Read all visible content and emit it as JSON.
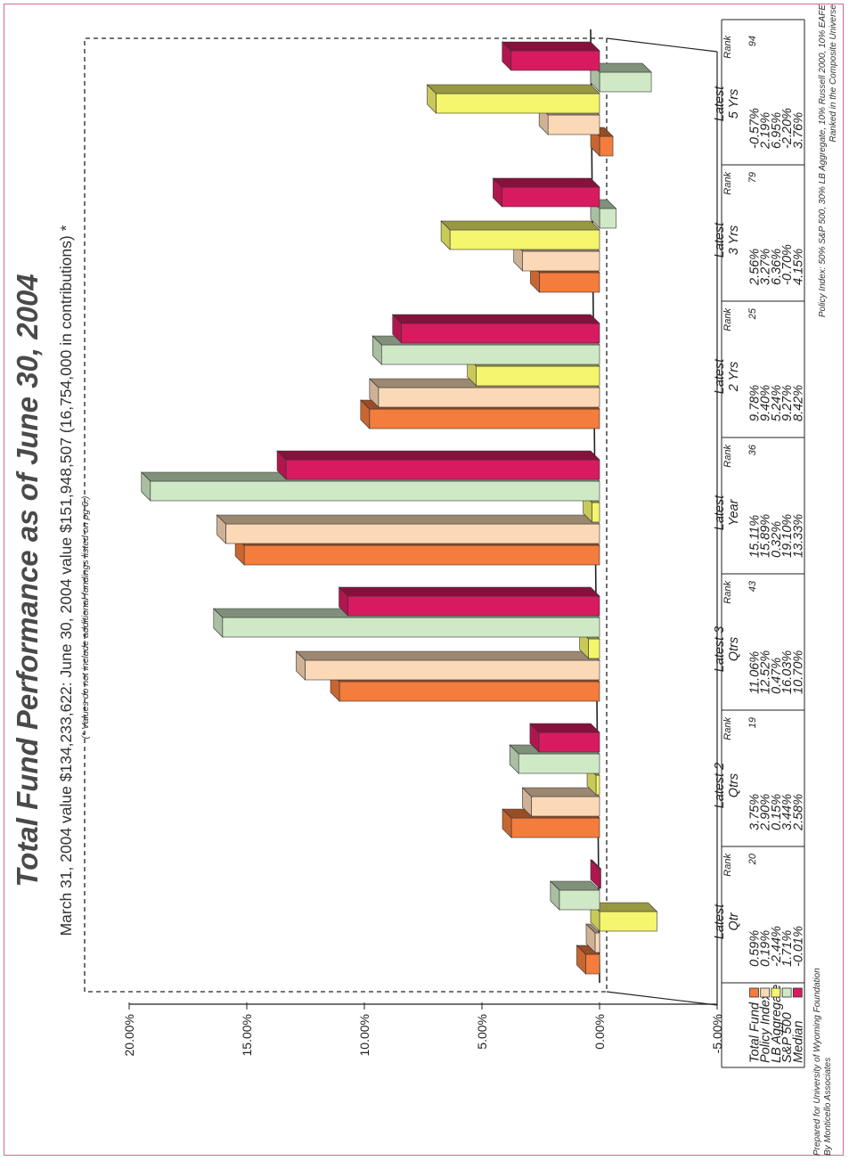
{
  "title": "Total Fund Performance as of June 30, 2004",
  "subtitle": "March 31, 2004 value $134,233,622:  June 30, 2004 value $151,948,507 (16,754,000 in contributions) *",
  "note": "(* Values do not include additional fundings listed on pg 6.)",
  "footer": {
    "prepared_line1": "Prepared for University of Wyoming Foundation",
    "prepared_line2": "By Monticello Associates",
    "policy_line1": "Policy Index:  50% S&P 500, 30% LB Aggregate, 10% Russell 2000, 10% EAFE",
    "policy_line2": "Ranked in the Composite Universe"
  },
  "table": {
    "rank_label": "Rank",
    "ranks": [
      "20",
      "19",
      "43",
      "36",
      "25",
      "79",
      "94"
    ]
  },
  "colors": {
    "Total Fund": "#f47c3c",
    "Policy Index": "#fcd9b6",
    "LB Aggregate": "#f5f56e",
    "S&P 500": "#cfe9c6",
    "Median": "#d81b60"
  },
  "chart_data": {
    "type": "bar",
    "categories": [
      "Latest Qtr",
      "Latest 2 Qtrs",
      "Latest 3 Qtrs",
      "Latest Year",
      "Latest 2 Yrs",
      "Latest 3 Yrs",
      "Latest 5 Yrs"
    ],
    "category_lines": [
      [
        "Latest",
        "Qtr"
      ],
      [
        "Latest 2",
        "Qtrs"
      ],
      [
        "Latest 3",
        "Qtrs"
      ],
      [
        "Latest",
        "Year"
      ],
      [
        "Latest",
        "2 Yrs"
      ],
      [
        "Latest",
        "3 Yrs"
      ],
      [
        "Latest",
        "5 Yrs"
      ]
    ],
    "series": [
      {
        "name": "Total Fund",
        "values": [
          0.59,
          3.75,
          11.06,
          15.11,
          9.78,
          2.56,
          -0.57
        ],
        "labels": [
          "0.59%",
          "3.75%",
          "11.06%",
          "15.11%",
          "9.78%",
          "2.56%",
          "-0.57%"
        ]
      },
      {
        "name": "Policy Index",
        "values": [
          0.19,
          2.9,
          12.52,
          15.89,
          9.4,
          3.27,
          2.19
        ],
        "labels": [
          "0.19%",
          "2.90%",
          "12.52%",
          "15.89%",
          "9.40%",
          "3.27%",
          "2.19%"
        ]
      },
      {
        "name": "LB Aggregate",
        "values": [
          -2.44,
          0.15,
          0.47,
          0.32,
          5.24,
          6.36,
          6.95
        ],
        "labels": [
          "-2.44%",
          "0.15%",
          "0.47%",
          "0.32%",
          "5.24%",
          "6.36%",
          "6.95%"
        ]
      },
      {
        "name": "S&P 500",
        "values": [
          1.71,
          3.44,
          16.03,
          19.1,
          9.27,
          -0.7,
          -2.2
        ],
        "labels": [
          "1.71%",
          "3.44%",
          "16.03%",
          "19.10%",
          "9.27%",
          "-0.70%",
          "-2.20%"
        ]
      },
      {
        "name": "Median",
        "values": [
          -0.01,
          2.58,
          10.7,
          13.33,
          8.42,
          4.15,
          3.76
        ],
        "labels": [
          "-0.01%",
          "2.58%",
          "10.70%",
          "13.33%",
          "8.42%",
          "4.15%",
          "3.76%"
        ]
      }
    ],
    "yticks": [
      "20.00%",
      "15.00%",
      "10.00%",
      "5.00%",
      "0.00%",
      "-5.00%"
    ],
    "ylim": [
      -5,
      20
    ],
    "grid": false,
    "legend": "table-left"
  }
}
